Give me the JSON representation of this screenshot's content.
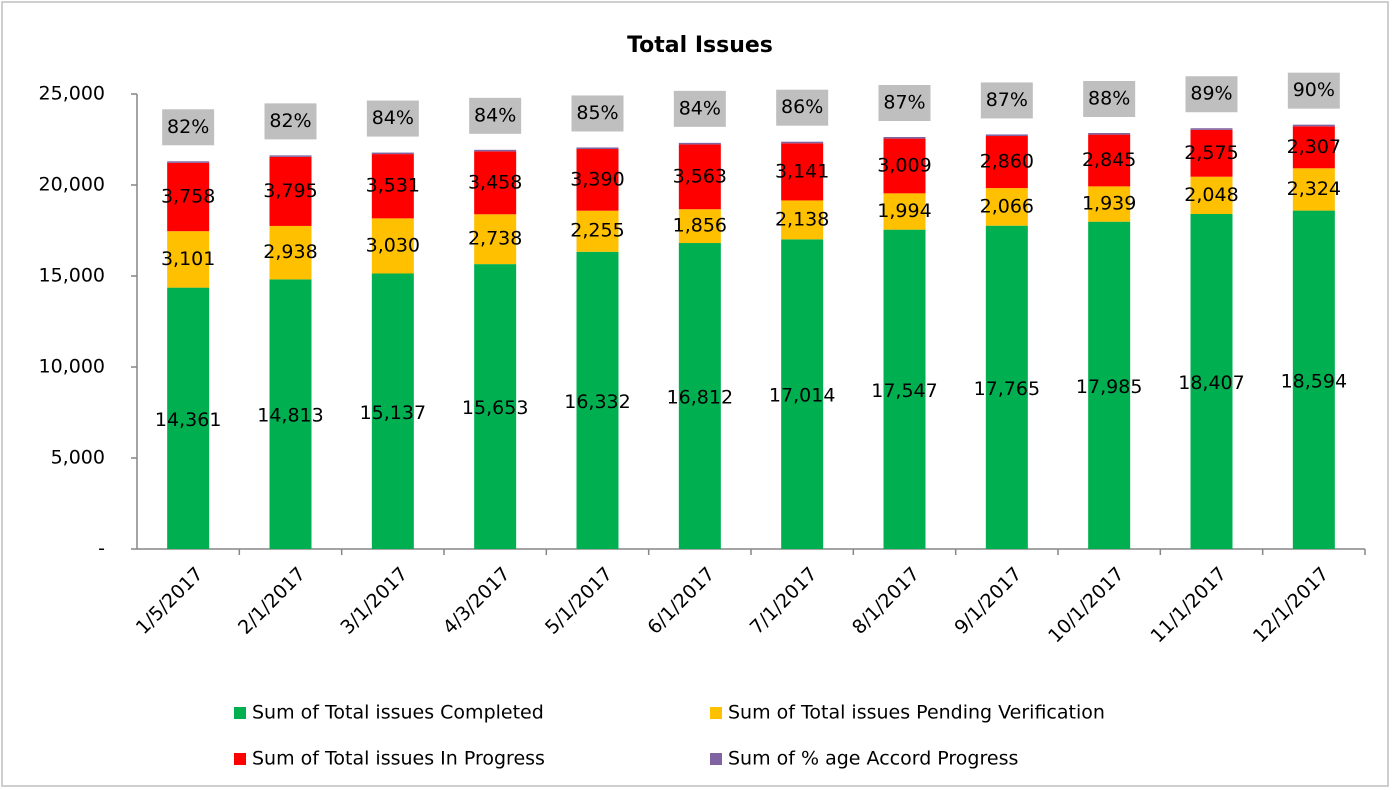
{
  "chart_data": {
    "type": "stacked_bar",
    "title": "Total Issues",
    "categories": [
      "1/5/2017",
      "2/1/2017",
      "3/1/2017",
      "4/3/2017",
      "5/1/2017",
      "6/1/2017",
      "7/1/2017",
      "8/1/2017",
      "9/1/2017",
      "10/1/2017",
      "11/1/2017",
      "12/1/2017"
    ],
    "series": [
      {
        "name": "Sum of Total issues Completed",
        "color": "#00b050",
        "values": [
          14361,
          14813,
          15137,
          15653,
          16332,
          16812,
          17014,
          17547,
          17765,
          17985,
          18407,
          18594
        ],
        "value_labels": [
          "14,361",
          "14,813",
          "15,137",
          "15,653",
          "16,332",
          "16,812",
          "17,014",
          "17,547",
          "17,765",
          "17,985",
          "18,407",
          "18,594"
        ]
      },
      {
        "name": "Sum of Total issues Pending Verification",
        "color": "#ffc000",
        "values": [
          3101,
          2938,
          3030,
          2738,
          2255,
          1856,
          2138,
          1994,
          2066,
          1939,
          2048,
          2324
        ],
        "value_labels": [
          "3,101",
          "2,938",
          "3,030",
          "2,738",
          "2,255",
          "1,856",
          "2,138",
          "1,994",
          "2,066",
          "1,939",
          "2,048",
          "2,324"
        ]
      },
      {
        "name": "Sum of Total issues In Progress",
        "color": "#ff0000",
        "values": [
          3758,
          3795,
          3531,
          3458,
          3390,
          3563,
          3141,
          3009,
          2860,
          2845,
          2575,
          2307
        ],
        "value_labels": [
          "3,758",
          "3,795",
          "3,531",
          "3,458",
          "3,390",
          "3,563",
          "3,141",
          "3,009",
          "2,860",
          "2,845",
          "2,575",
          "2,307"
        ]
      },
      {
        "name": "Sum of % age Accord Progress",
        "color": "#8064a2",
        "values": [
          82,
          82,
          84,
          84,
          85,
          84,
          86,
          87,
          87,
          88,
          89,
          90
        ],
        "value_labels": [
          "82%",
          "82%",
          "84%",
          "84%",
          "85%",
          "84%",
          "86%",
          "87%",
          "87%",
          "88%",
          "89%",
          "90%"
        ]
      }
    ],
    "ylim": [
      0,
      25000
    ],
    "yticks": [
      {
        "value": 0,
        "label": "-"
      },
      {
        "value": 5000,
        "label": "5,000"
      },
      {
        "value": 10000,
        "label": "10,000"
      },
      {
        "value": 15000,
        "label": "15,000"
      },
      {
        "value": 20000,
        "label": "20,000"
      },
      {
        "value": 25000,
        "label": "25,000"
      }
    ],
    "grid": false
  }
}
